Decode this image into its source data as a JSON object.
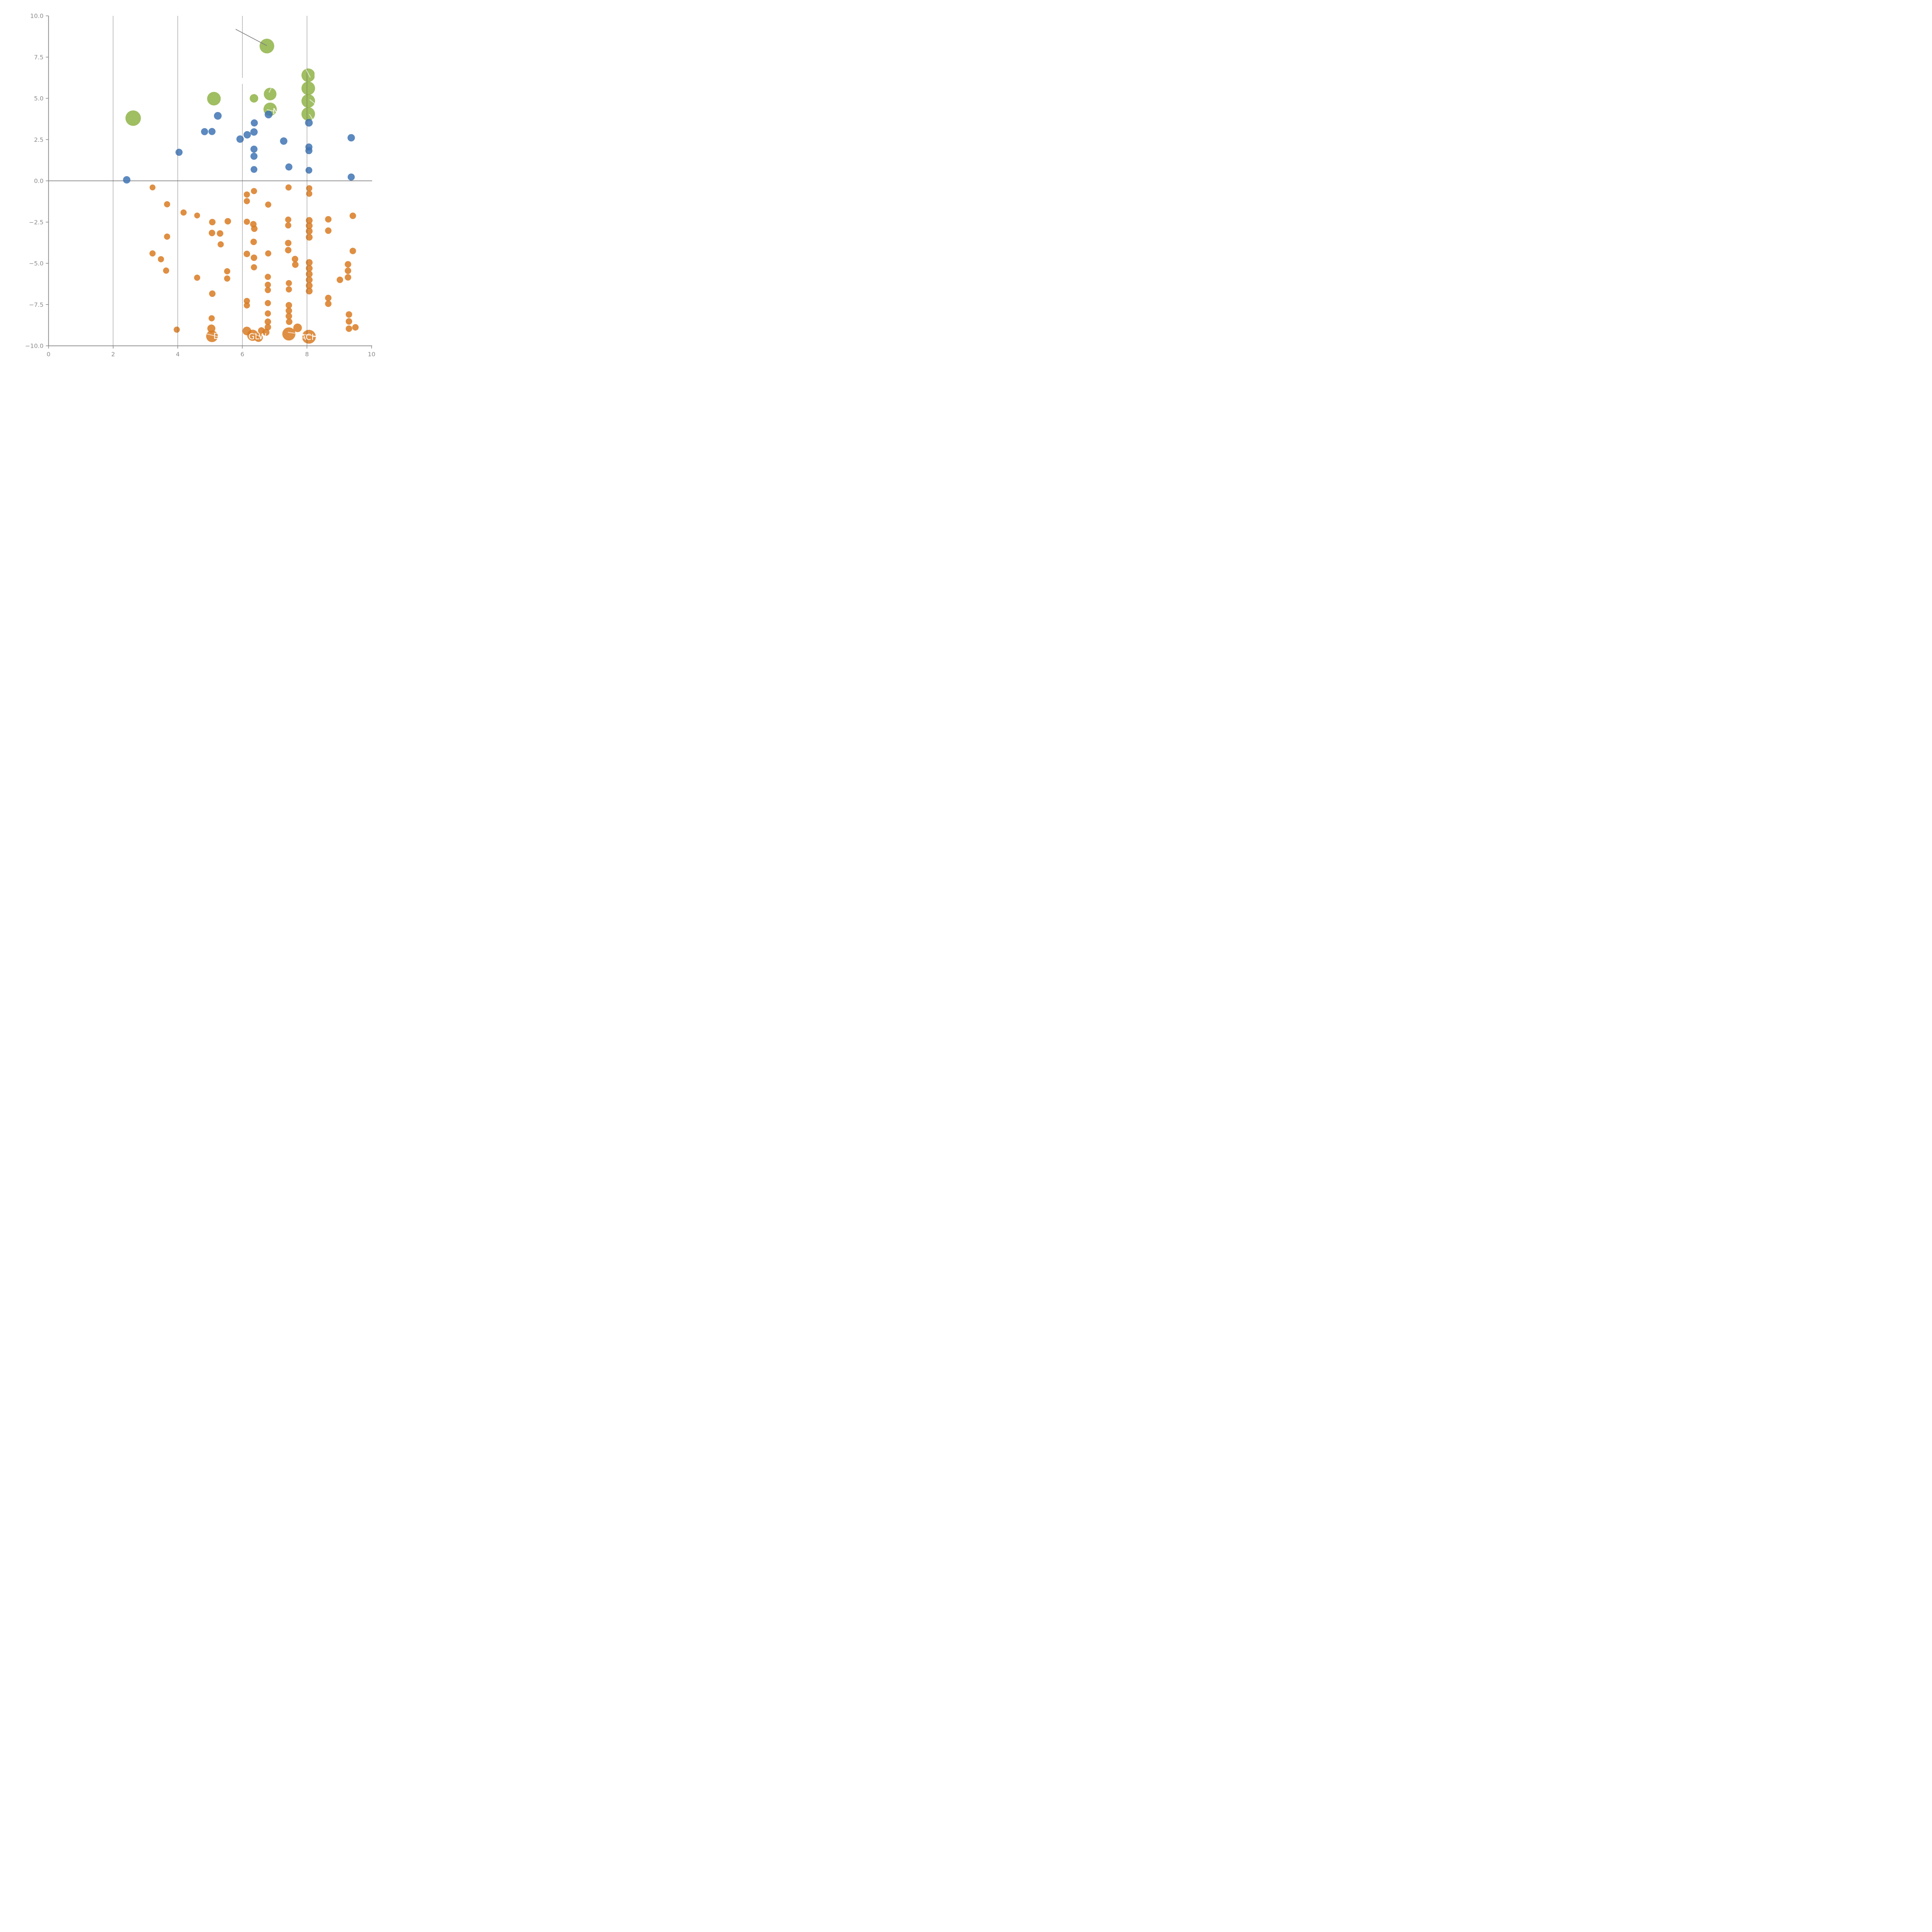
{
  "chart_data": {
    "type": "scatter",
    "title": "",
    "xlabel": "",
    "ylabel": "",
    "xlim": [
      0,
      10
    ],
    "ylim": [
      -10,
      10
    ],
    "grid": "vertical-only",
    "legend": "none",
    "x_ticks": [
      0,
      2,
      4,
      6,
      8,
      10
    ],
    "x_tick_labels": [
      "0",
      "2",
      "4",
      "6",
      "8",
      "10"
    ],
    "y_ticks": [
      10,
      7.5,
      5,
      2.5,
      0,
      -2.5,
      -5,
      -7.5,
      -10
    ],
    "y_tick_labels": [
      "10.0",
      "7.5",
      "5.0",
      "2.5",
      "0.0",
      "−2.5",
      "−5.0",
      "−7.5",
      "−10.0"
    ],
    "gridlines_x": [
      2,
      4,
      6,
      8
    ],
    "zero_line_y": 0,
    "colors": {
      "green_bubble": "#8fb347",
      "blue_dot": "#3f74b4",
      "orange_dot": "#d97b22",
      "axis_gray": "#858585",
      "tick_label_gray": "#8a8a8a",
      "gridline_gray": "#555555",
      "gray_leader": "#7d7d7d",
      "white_leader": "rgba(255,255,255,0.62)",
      "point_alpha": 0.85
    },
    "series": [
      {
        "name": "green-bubbles",
        "color": "#8fb347",
        "points": [
          {
            "x": 2.62,
            "y": 3.8,
            "r": 20.0
          },
          {
            "x": 5.12,
            "y": 4.98,
            "r": 17.6
          },
          {
            "x": 6.36,
            "y": 5.0,
            "r": 11.0
          },
          {
            "x": 6.86,
            "y": 5.26,
            "r": 16.4
          },
          {
            "x": 6.86,
            "y": 4.34,
            "r": 17.2
          },
          {
            "x": 6.76,
            "y": 8.17,
            "r": 19.0
          },
          {
            "x": 8.04,
            "y": 6.4,
            "r": 17.6
          },
          {
            "x": 8.04,
            "y": 5.61,
            "r": 17.6
          },
          {
            "x": 8.04,
            "y": 4.84,
            "r": 17.6
          },
          {
            "x": 8.04,
            "y": 4.05,
            "r": 17.6
          }
        ]
      },
      {
        "name": "blue-dots",
        "color": "#3f74b4",
        "points": [
          {
            "x": 2.42,
            "y": 0.06,
            "r": 9.6
          },
          {
            "x": 4.04,
            "y": 1.73,
            "r": 9.2
          },
          {
            "x": 4.83,
            "y": 2.98,
            "r": 9.2
          },
          {
            "x": 5.06,
            "y": 2.99,
            "r": 9.2
          },
          {
            "x": 5.24,
            "y": 3.94,
            "r": 10.0
          },
          {
            "x": 5.93,
            "y": 2.53,
            "r": 9.6
          },
          {
            "x": 6.15,
            "y": 2.79,
            "r": 9.6
          },
          {
            "x": 6.36,
            "y": 2.96,
            "r": 9.6
          },
          {
            "x": 6.37,
            "y": 3.51,
            "r": 9.2
          },
          {
            "x": 6.36,
            "y": 1.92,
            "r": 9.2
          },
          {
            "x": 6.36,
            "y": 1.49,
            "r": 9.2
          },
          {
            "x": 6.36,
            "y": 0.69,
            "r": 8.8
          },
          {
            "x": 6.81,
            "y": 4.02,
            "r": 10.0
          },
          {
            "x": 7.28,
            "y": 2.41,
            "r": 9.6
          },
          {
            "x": 7.44,
            "y": 0.84,
            "r": 9.2
          },
          {
            "x": 8.06,
            "y": 3.52,
            "r": 10.0
          },
          {
            "x": 8.06,
            "y": 2.05,
            "r": 9.2
          },
          {
            "x": 8.06,
            "y": 1.83,
            "r": 9.2
          },
          {
            "x": 8.06,
            "y": 0.64,
            "r": 8.8
          },
          {
            "x": 9.37,
            "y": 2.61,
            "r": 9.6
          },
          {
            "x": 9.37,
            "y": 0.23,
            "r": 9.2
          }
        ]
      },
      {
        "name": "orange-dots",
        "color": "#d97b22",
        "points": [
          {
            "x": 3.22,
            "y": -0.4,
            "r": 7.6
          },
          {
            "x": 3.67,
            "y": -1.42,
            "r": 8.0
          },
          {
            "x": 4.18,
            "y": -1.92,
            "r": 8.0
          },
          {
            "x": 4.6,
            "y": -2.1,
            "r": 7.6
          },
          {
            "x": 5.07,
            "y": -2.5,
            "r": 8.4
          },
          {
            "x": 5.55,
            "y": -2.45,
            "r": 8.4
          },
          {
            "x": 5.06,
            "y": -3.16,
            "r": 8.4
          },
          {
            "x": 5.31,
            "y": -3.19,
            "r": 8.4
          },
          {
            "x": 5.33,
            "y": -3.85,
            "r": 8.0
          },
          {
            "x": 3.67,
            "y": -3.38,
            "r": 8.0
          },
          {
            "x": 3.22,
            "y": -4.4,
            "r": 8.0
          },
          {
            "x": 3.48,
            "y": -4.75,
            "r": 8.0
          },
          {
            "x": 3.64,
            "y": -5.44,
            "r": 8.0
          },
          {
            "x": 4.6,
            "y": -5.87,
            "r": 8.0
          },
          {
            "x": 5.53,
            "y": -5.48,
            "r": 8.0
          },
          {
            "x": 5.53,
            "y": -5.92,
            "r": 8.0
          },
          {
            "x": 5.07,
            "y": -6.84,
            "r": 8.4
          },
          {
            "x": 5.05,
            "y": -8.33,
            "r": 8.0
          },
          {
            "x": 5.04,
            "y": -8.95,
            "r": 10.4
          },
          {
            "x": 5.06,
            "y": -9.42,
            "r": 15.2
          },
          {
            "x": 3.97,
            "y": -9.02,
            "r": 8.0
          },
          {
            "x": 6.36,
            "y": -0.62,
            "r": 8.0
          },
          {
            "x": 6.14,
            "y": -0.83,
            "r": 8.0
          },
          {
            "x": 6.14,
            "y": -1.23,
            "r": 8.0
          },
          {
            "x": 6.8,
            "y": -1.44,
            "r": 8.0
          },
          {
            "x": 7.43,
            "y": -0.4,
            "r": 8.0
          },
          {
            "x": 6.14,
            "y": -2.48,
            "r": 8.0
          },
          {
            "x": 6.34,
            "y": -2.63,
            "r": 8.4
          },
          {
            "x": 6.37,
            "y": -2.9,
            "r": 8.4
          },
          {
            "x": 6.35,
            "y": -3.7,
            "r": 8.4
          },
          {
            "x": 6.14,
            "y": -4.43,
            "r": 8.4
          },
          {
            "x": 6.36,
            "y": -4.66,
            "r": 8.4
          },
          {
            "x": 6.8,
            "y": -4.4,
            "r": 8.0
          },
          {
            "x": 6.36,
            "y": -5.24,
            "r": 8.0
          },
          {
            "x": 6.79,
            "y": -5.82,
            "r": 8.0
          },
          {
            "x": 6.79,
            "y": -6.3,
            "r": 8.0
          },
          {
            "x": 6.79,
            "y": -6.62,
            "r": 8.0
          },
          {
            "x": 6.14,
            "y": -7.28,
            "r": 8.0
          },
          {
            "x": 6.14,
            "y": -7.55,
            "r": 8.0
          },
          {
            "x": 6.79,
            "y": -7.41,
            "r": 8.0
          },
          {
            "x": 6.79,
            "y": -8.04,
            "r": 8.0
          },
          {
            "x": 6.79,
            "y": -8.54,
            "r": 8.4
          },
          {
            "x": 6.79,
            "y": -8.87,
            "r": 8.4
          },
          {
            "x": 6.14,
            "y": -9.1,
            "r": 11.2
          },
          {
            "x": 6.32,
            "y": -9.36,
            "r": 14.4
          },
          {
            "x": 6.5,
            "y": -9.5,
            "r": 11.2
          },
          {
            "x": 6.59,
            "y": -9.08,
            "r": 8.8
          },
          {
            "x": 6.73,
            "y": -9.18,
            "r": 9.2
          },
          {
            "x": 7.42,
            "y": -2.35,
            "r": 8.0
          },
          {
            "x": 7.42,
            "y": -2.7,
            "r": 8.0
          },
          {
            "x": 7.42,
            "y": -3.77,
            "r": 8.4
          },
          {
            "x": 7.42,
            "y": -4.2,
            "r": 8.4
          },
          {
            "x": 7.63,
            "y": -4.74,
            "r": 8.4
          },
          {
            "x": 7.64,
            "y": -5.08,
            "r": 8.4
          },
          {
            "x": 7.44,
            "y": -6.2,
            "r": 8.0
          },
          {
            "x": 7.44,
            "y": -6.58,
            "r": 8.0
          },
          {
            "x": 7.44,
            "y": -7.54,
            "r": 8.4
          },
          {
            "x": 7.44,
            "y": -7.87,
            "r": 8.4
          },
          {
            "x": 7.44,
            "y": -8.2,
            "r": 8.4
          },
          {
            "x": 7.45,
            "y": -8.54,
            "r": 8.4
          },
          {
            "x": 7.44,
            "y": -9.28,
            "r": 17.0
          },
          {
            "x": 7.71,
            "y": -8.91,
            "r": 11.2
          },
          {
            "x": 8.07,
            "y": -0.45,
            "r": 8.0
          },
          {
            "x": 8.07,
            "y": -0.78,
            "r": 8.0
          },
          {
            "x": 8.07,
            "y": -2.4,
            "r": 8.8
          },
          {
            "x": 8.07,
            "y": -2.72,
            "r": 8.8
          },
          {
            "x": 8.07,
            "y": -3.05,
            "r": 8.8
          },
          {
            "x": 8.07,
            "y": -3.42,
            "r": 8.8
          },
          {
            "x": 8.07,
            "y": -4.95,
            "r": 8.8
          },
          {
            "x": 8.07,
            "y": -5.3,
            "r": 8.8
          },
          {
            "x": 8.07,
            "y": -5.65,
            "r": 8.8
          },
          {
            "x": 8.07,
            "y": -6.0,
            "r": 8.8
          },
          {
            "x": 8.07,
            "y": -6.35,
            "r": 8.8
          },
          {
            "x": 8.07,
            "y": -6.68,
            "r": 8.8
          },
          {
            "x": 8.06,
            "y": -9.45,
            "r": 18.0
          },
          {
            "x": 8.66,
            "y": -2.33,
            "r": 8.4
          },
          {
            "x": 8.66,
            "y": -3.02,
            "r": 8.4
          },
          {
            "x": 8.66,
            "y": -7.1,
            "r": 8.4
          },
          {
            "x": 8.66,
            "y": -7.45,
            "r": 8.4
          },
          {
            "x": 9.42,
            "y": -2.12,
            "r": 8.4
          },
          {
            "x": 9.42,
            "y": -4.25,
            "r": 8.4
          },
          {
            "x": 9.27,
            "y": -5.06,
            "r": 8.4
          },
          {
            "x": 9.27,
            "y": -5.45,
            "r": 8.4
          },
          {
            "x": 9.27,
            "y": -5.85,
            "r": 8.4
          },
          {
            "x": 9.02,
            "y": -6.0,
            "r": 8.4
          },
          {
            "x": 9.3,
            "y": -8.1,
            "r": 8.4
          },
          {
            "x": 9.3,
            "y": -8.52,
            "r": 8.4
          },
          {
            "x": 9.3,
            "y": -8.96,
            "r": 8.4
          },
          {
            "x": 9.5,
            "y": -8.88,
            "r": 8.4
          }
        ]
      }
    ],
    "annotations": {
      "point_labels": [
        {
          "text": "D",
          "x": 5.2,
          "y": -9.4
        },
        {
          "text": "GLW",
          "x": 6.47,
          "y": -9.43
        },
        {
          "text": "ACH",
          "x": 8.06,
          "y": -9.46
        },
        {
          "text": "N",
          "x": 7.03,
          "y": 4.22
        },
        {
          "text": "L",
          "x": 8.28,
          "y": 6.42
        },
        {
          "text": "E",
          "x": 6.04,
          "y": 6.05
        }
      ],
      "gray_leader_lines": [
        {
          "x1": 5.8,
          "y1": 9.18,
          "x2": 6.75,
          "y2": 8.2
        }
      ],
      "white_leader_lines": [
        {
          "x1": 7.97,
          "y1": 6.76,
          "x2": 8.1,
          "y2": 6.28
        },
        {
          "x1": 8.09,
          "y1": 4.92,
          "x2": 8.27,
          "y2": 4.64
        },
        {
          "x1": 8.08,
          "y1": 4.03,
          "x2": 8.19,
          "y2": 3.68
        },
        {
          "x1": 6.91,
          "y1": 5.7,
          "x2": 6.83,
          "y2": 5.37
        },
        {
          "x1": 6.77,
          "y1": 4.31,
          "x2": 6.97,
          "y2": 4.23
        },
        {
          "x1": 4.9,
          "y1": -9.28,
          "x2": 5.3,
          "y2": -9.47
        },
        {
          "x1": 6.38,
          "y1": -9.27,
          "x2": 6.57,
          "y2": -9.46
        },
        {
          "x1": 7.42,
          "y1": -9.18,
          "x2": 8.3,
          "y2": -9.42
        }
      ]
    }
  }
}
